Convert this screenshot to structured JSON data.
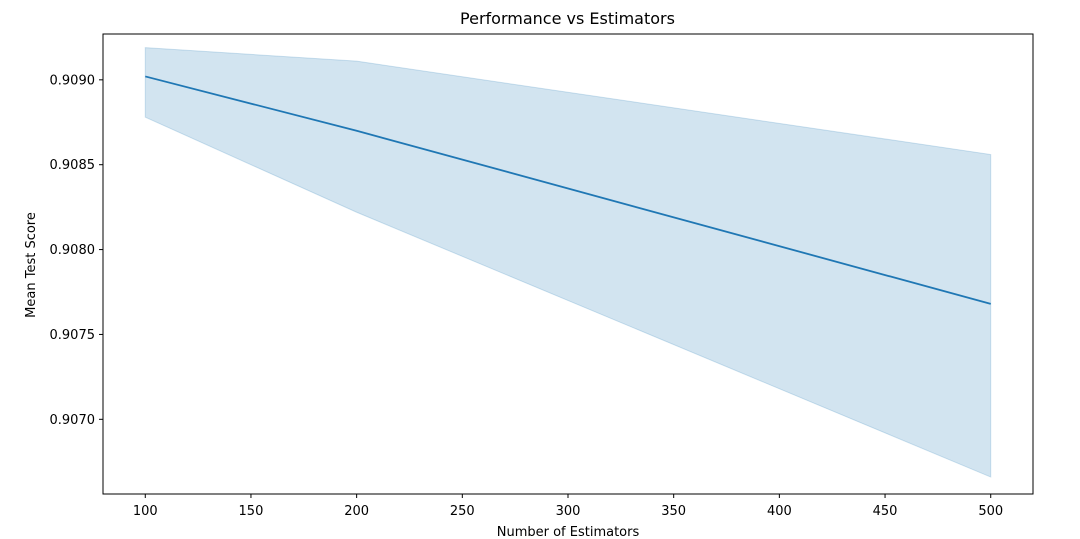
{
  "chart_data": {
    "type": "line",
    "title": "Performance vs Estimators",
    "xlabel": "Number of Estimators",
    "ylabel": "Mean Test Score",
    "x": [
      100,
      200,
      500
    ],
    "series": [
      {
        "values": [
          0.90902,
          0.9087,
          0.90768
        ],
        "lower": [
          0.90878,
          0.90822,
          0.90666
        ],
        "upper": [
          0.90919,
          0.90911,
          0.90856
        ],
        "color": "#1f77b4",
        "band_color": "#1f77b4"
      }
    ],
    "xlim": [
      80,
      520
    ],
    "ylim": [
      0.90656,
      0.90927
    ],
    "xticks": [
      100,
      150,
      200,
      250,
      300,
      350,
      400,
      450,
      500
    ],
    "xtick_labels": [
      "100",
      "150",
      "200",
      "250",
      "300",
      "350",
      "400",
      "450",
      "500"
    ],
    "yticks": [
      0.907,
      0.9075,
      0.908,
      0.9085,
      0.909
    ],
    "ytick_labels": [
      "0.9070",
      "0.9075",
      "0.9080",
      "0.9085",
      "0.9090"
    ],
    "grid": false,
    "legend": "none"
  }
}
